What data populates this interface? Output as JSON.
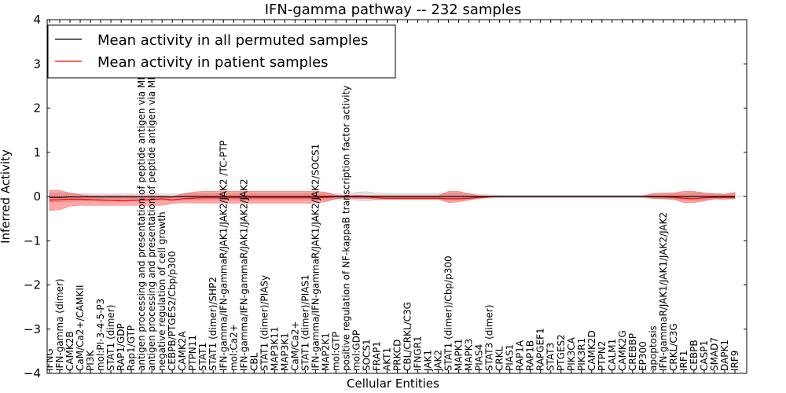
{
  "chart_data": {
    "type": "line",
    "title": "IFN-gamma pathway -- 232 samples",
    "xlabel": "Cellular Entities",
    "ylabel": "Inferred Activity",
    "ylim": [
      -4,
      4
    ],
    "yticks": [
      -4,
      -3,
      -2,
      -1,
      0,
      1,
      2,
      3,
      4
    ],
    "ytick_labels": [
      "−4",
      "−3",
      "−2",
      "−1",
      "0",
      "1",
      "2",
      "3",
      "4"
    ],
    "legend_position": "top-left",
    "categories": [
      "IFNG",
      "IFN-gamma (dimer)",
      "CAMK2B",
      "CaM/Ca2+/CAMKII",
      "PI3K",
      "mol:PI-3-4-5-P3",
      "STAT1 (dimer)",
      "RAP1/GDP",
      "Rap1/GTP",
      "antigen processing and presentation of peptide antigen via MHC class I",
      "antigen processing and presentation of peptide antigen via MHC class II",
      "negative regulation of cell growth",
      "CEBPB/PTGES2/Cbp/p300",
      "CAMK2A",
      "PTPN11",
      "STAT1",
      "STAT1 (dimer)/SHP2",
      "IFN-gamma/IFN-gammaR/JAK1/JAK2/JAK2 /TC-PTP",
      "mol:Ca2+",
      "IFN-gamma/IFN-gammaR/JAK1/JAK2/JAK2",
      "CBL",
      "STAT1 (dimer)/PIASy",
      "MAP3K11",
      "MAP3K1",
      "CaM/Ca2+",
      "STAT1 (dimer)/PIAS1",
      "IFN-gamma/IFN-gammaR/JAK1/JAK2/JAK2/SOCS1",
      "MAP2K1",
      "mol:GTP",
      "positive regulation of NF-kappaB transcription factor activity",
      "mol:GDP",
      "SOCS1",
      "FRAP1",
      "AKT1",
      "PRKCD",
      "CBL/CRKL/C3G",
      "IFNGR1",
      "JAK1",
      "JAK2",
      "STAT1 (dimer)/Cbp/p300",
      "MAPK1",
      "MAPK3",
      "PIAS4",
      "STAT3 (dimer)",
      "CRKL",
      "PIAS1",
      "RAP1A",
      "RAP1B",
      "RAPGEF1",
      "STAT3",
      "PTGES2",
      "PIK3CA",
      "PIK3R1",
      "CAMK2D",
      "PTPN2",
      "CALM1",
      "CAMK2G",
      "CREBBP",
      "EP300",
      "apoptosis",
      "IFN-gammaR/JAK1/JAK1/JAK2/JAK2",
      "CRKL/C3G",
      "IRF1",
      "CEBPB",
      "CASP1",
      "SMAD7",
      "DAPK1",
      "IRF9"
    ],
    "series": [
      {
        "name": "Mean activity in all permuted samples",
        "color": "#000000",
        "values": [
          -0.02,
          -0.02,
          -0.01,
          -0.01,
          -0.01,
          -0.01,
          -0.01,
          -0.01,
          -0.01,
          -0.01,
          -0.01,
          -0.01,
          -0.01,
          0,
          0,
          0,
          0,
          0,
          0,
          0,
          0,
          0,
          0,
          0,
          0,
          0,
          0,
          0,
          0,
          0,
          0,
          0,
          0,
          0,
          0,
          0,
          0,
          0,
          0,
          0,
          0,
          0,
          0,
          0,
          0,
          0,
          0,
          0,
          0,
          0,
          0,
          0,
          0,
          0,
          0,
          0,
          0,
          0,
          0,
          0,
          0,
          0,
          0,
          0,
          0,
          0,
          0,
          0
        ],
        "band_lower": [
          -0.12,
          -0.12,
          -0.11,
          -0.1,
          -0.1,
          -0.09,
          -0.09,
          -0.09,
          -0.09,
          -0.09,
          -0.09,
          -0.09,
          -0.09,
          -0.08,
          -0.08,
          -0.08,
          -0.08,
          -0.08,
          -0.08,
          -0.08,
          -0.08,
          -0.08,
          -0.08,
          -0.08,
          -0.08,
          -0.08,
          -0.08,
          -0.08,
          -0.07,
          -0.06,
          -0.09,
          -0.1,
          -0.08,
          -0.07,
          -0.07,
          -0.07,
          -0.07,
          -0.07,
          -0.07,
          -0.08,
          -0.08,
          -0.07,
          -0.05,
          -0.04,
          -0.03,
          -0.03,
          -0.03,
          -0.03,
          -0.03,
          -0.03,
          -0.03,
          -0.03,
          -0.03,
          -0.03,
          -0.03,
          -0.03,
          -0.03,
          -0.03,
          -0.03,
          -0.05,
          -0.06,
          -0.07,
          -0.08,
          -0.09,
          -0.08,
          -0.07,
          -0.06,
          -0.06
        ],
        "band_upper": [
          0.08,
          0.08,
          0.07,
          0.07,
          0.06,
          0.06,
          0.06,
          0.06,
          0.06,
          0.06,
          0.06,
          0.06,
          0.06,
          0.06,
          0.07,
          0.07,
          0.07,
          0.07,
          0.07,
          0.07,
          0.07,
          0.07,
          0.07,
          0.07,
          0.07,
          0.07,
          0.07,
          0.07,
          0.06,
          0.06,
          0.1,
          0.11,
          0.08,
          0.07,
          0.07,
          0.07,
          0.07,
          0.07,
          0.07,
          0.08,
          0.08,
          0.07,
          0.05,
          0.04,
          0.03,
          0.03,
          0.03,
          0.03,
          0.03,
          0.03,
          0.03,
          0.03,
          0.03,
          0.03,
          0.03,
          0.03,
          0.03,
          0.03,
          0.03,
          0.05,
          0.06,
          0.07,
          0.08,
          0.09,
          0.08,
          0.07,
          0.06,
          0.06
        ]
      },
      {
        "name": "Mean activity in patient samples",
        "color": "#ff0000",
        "values": [
          -0.08,
          -0.07,
          -0.06,
          -0.06,
          -0.07,
          -0.08,
          -0.09,
          -0.1,
          -0.09,
          -0.08,
          -0.07,
          -0.05,
          -0.08,
          -0.05,
          -0.04,
          -0.03,
          -0.03,
          -0.03,
          -0.03,
          -0.03,
          -0.03,
          -0.03,
          -0.03,
          -0.03,
          -0.03,
          -0.03,
          -0.03,
          -0.02,
          -0.01,
          -0.01,
          -0.01,
          -0.01,
          -0.03,
          -0.04,
          -0.04,
          -0.04,
          -0.04,
          -0.04,
          -0.04,
          -0.05,
          -0.05,
          -0.04,
          -0.02,
          -0.01,
          0,
          0,
          0,
          0,
          0,
          0,
          0,
          0,
          0,
          0,
          0,
          0,
          0,
          0,
          0,
          -0.01,
          -0.01,
          -0.02,
          -0.04,
          -0.05,
          -0.03,
          -0.02,
          -0.02,
          -0.02
        ],
        "band_lower": [
          -0.32,
          -0.3,
          -0.22,
          -0.2,
          -0.2,
          -0.2,
          -0.2,
          -0.2,
          -0.2,
          -0.2,
          -0.2,
          -0.2,
          -0.16,
          -0.14,
          -0.15,
          -0.15,
          -0.15,
          -0.15,
          -0.15,
          -0.15,
          -0.15,
          -0.15,
          -0.15,
          -0.15,
          -0.15,
          -0.15,
          -0.15,
          -0.12,
          -0.05,
          -0.04,
          -0.05,
          -0.05,
          -0.06,
          -0.06,
          -0.06,
          -0.06,
          -0.06,
          -0.06,
          -0.06,
          -0.14,
          -0.12,
          -0.08,
          -0.04,
          -0.02,
          -0.01,
          -0.01,
          -0.01,
          -0.01,
          -0.01,
          -0.01,
          -0.01,
          -0.01,
          -0.01,
          -0.01,
          -0.01,
          -0.01,
          -0.01,
          -0.01,
          -0.01,
          -0.04,
          -0.05,
          -0.06,
          -0.14,
          -0.14,
          -0.1,
          -0.05,
          -0.06,
          -0.05
        ],
        "band_upper": [
          0.14,
          0.14,
          0.08,
          0.04,
          0.02,
          0.02,
          0.02,
          0.02,
          0.02,
          0.02,
          0.02,
          0.02,
          0.0,
          0.06,
          0.1,
          0.12,
          0.12,
          0.12,
          0.12,
          0.12,
          0.12,
          0.12,
          0.12,
          0.12,
          0.12,
          0.12,
          0.12,
          0.1,
          0.03,
          0.02,
          0.03,
          0.02,
          0.02,
          0.02,
          0.02,
          0.02,
          0.02,
          0.02,
          0.02,
          0.12,
          0.12,
          0.06,
          0.02,
          0.01,
          0.01,
          0.01,
          0.01,
          0.01,
          0.01,
          0.01,
          0.01,
          0.01,
          0.01,
          0.01,
          0.01,
          0.01,
          0.01,
          0.01,
          0.01,
          0.07,
          0.08,
          0.08,
          0.12,
          0.12,
          0.08,
          0.06,
          0.05,
          0.1
        ]
      }
    ]
  }
}
